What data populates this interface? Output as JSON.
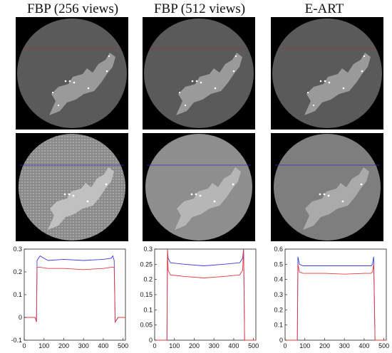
{
  "columns": [
    {
      "title": "FBP (256 views)"
    },
    {
      "title": "FBP (512 views)"
    },
    {
      "title": "E-ART"
    }
  ],
  "colors": {
    "background": "#000000",
    "disk": "#5a5a5a",
    "region": "#9a9a9a",
    "blue_profile": "#3a3ae8",
    "red_profile": "#e83a3a",
    "row1_line": "#c02020",
    "row2_line": "#3030c0"
  },
  "chart_data": [
    {
      "type": "line",
      "title": "FBP (256 views)",
      "x_ticks": [
        "0",
        "100",
        "200",
        "300",
        "400",
        "500"
      ],
      "y_ticks": [
        "-0.1",
        "0",
        "0.1",
        "0.2",
        "0.3"
      ],
      "xlim": [
        0,
        512
      ],
      "ylim": [
        -0.1,
        0.3
      ],
      "series": [
        {
          "color": "blue",
          "x": [
            0,
            20,
            40,
            55,
            62,
            65,
            80,
            120,
            200,
            300,
            400,
            440,
            448,
            455,
            460,
            475,
            500,
            512
          ],
          "y": [
            0,
            0,
            0,
            0,
            -0.02,
            0.25,
            0.27,
            0.25,
            0.255,
            0.25,
            0.255,
            0.26,
            0.27,
            0.25,
            -0.02,
            0,
            0,
            0
          ]
        },
        {
          "color": "red",
          "x": [
            0,
            20,
            40,
            55,
            62,
            65,
            80,
            120,
            200,
            300,
            400,
            440,
            448,
            455,
            460,
            475,
            500,
            512
          ],
          "y": [
            0,
            0,
            0,
            0,
            -0.02,
            0.22,
            0.22,
            0.215,
            0.215,
            0.21,
            0.215,
            0.22,
            0.22,
            0.22,
            -0.02,
            0,
            0,
            0
          ]
        }
      ]
    },
    {
      "type": "line",
      "title": "FBP (512 views)",
      "x_ticks": [
        "0",
        "100",
        "200",
        "300",
        "400",
        "500"
      ],
      "y_ticks": [
        "0",
        "0.05",
        "0.1",
        "0.15",
        "0.2",
        "0.25",
        "0.3"
      ],
      "xlim": [
        0,
        512
      ],
      "ylim": [
        0,
        0.3
      ],
      "series": [
        {
          "color": "blue",
          "x": [
            0,
            55,
            62,
            65,
            68,
            80,
            150,
            250,
            350,
            430,
            445,
            450,
            455,
            460,
            512
          ],
          "y": [
            0,
            0,
            0,
            0.3,
            0.27,
            0.255,
            0.25,
            0.245,
            0.25,
            0.255,
            0.27,
            0.3,
            0,
            0,
            0
          ]
        },
        {
          "color": "red",
          "x": [
            0,
            55,
            62,
            65,
            68,
            80,
            150,
            250,
            350,
            430,
            445,
            450,
            455,
            460,
            512
          ],
          "y": [
            0,
            0,
            0,
            0.3,
            0.23,
            0.215,
            0.21,
            0.205,
            0.21,
            0.215,
            0.23,
            0.3,
            0,
            0,
            0
          ]
        }
      ]
    },
    {
      "type": "line",
      "title": "E-ART",
      "x_ticks": [
        "0",
        "100",
        "200",
        "300",
        "400",
        "500"
      ],
      "y_ticks": [
        "0",
        "0.1",
        "0.2",
        "0.3",
        "0.4",
        "0.5",
        "0.6"
      ],
      "xlim": [
        0,
        512
      ],
      "ylim": [
        0,
        0.6
      ],
      "series": [
        {
          "color": "blue",
          "x": [
            0,
            55,
            62,
            65,
            72,
            90,
            200,
            300,
            400,
            435,
            442,
            448,
            455,
            512
          ],
          "y": [
            0,
            0,
            0,
            0.55,
            0.5,
            0.49,
            0.49,
            0.49,
            0.49,
            0.49,
            0.5,
            0.55,
            0,
            0
          ]
        },
        {
          "color": "red",
          "x": [
            0,
            55,
            62,
            65,
            72,
            90,
            200,
            300,
            400,
            435,
            442,
            448,
            455,
            512
          ],
          "y": [
            0,
            0,
            0,
            0.5,
            0.45,
            0.44,
            0.44,
            0.435,
            0.44,
            0.44,
            0.45,
            0.5,
            0,
            0
          ]
        }
      ]
    }
  ]
}
